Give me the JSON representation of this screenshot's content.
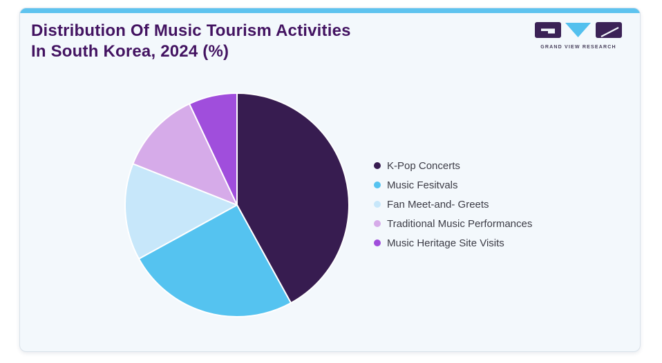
{
  "header": {
    "title_line1": "Distribution Of Music Tourism Activities",
    "title_line2": "In South Korea, 2024 (%)"
  },
  "logo": {
    "text": "GRAND VIEW RESEARCH"
  },
  "theme": {
    "page_bg": "#ffffff",
    "card_bg": "#f3f8fc",
    "card_border": "#d9e2ea",
    "top_bar": "#5ec3ef",
    "title_color": "#431361",
    "legend_text": "#3b3b45",
    "logo_dark": "#3b2256",
    "logo_accent": "#53c0ee",
    "logo_text_color": "#49415c",
    "slice_separator": "#ffffff"
  },
  "chart_data": {
    "type": "pie",
    "title": "Distribution Of Music Tourism Activities In South Korea, 2024 (%)",
    "unit": "%",
    "start_angle_deg": 0,
    "direction": "clockwise",
    "legend_position": "right",
    "slices": [
      {
        "label": "K-Pop Concerts",
        "value": 42,
        "color": "#371c50"
      },
      {
        "label": "Music Fesitvals",
        "value": 25,
        "color": "#55c3f0"
      },
      {
        "label": "Fan Meet-and- Greets",
        "value": 14,
        "color": "#c7e7fa"
      },
      {
        "label": "Traditional Music Performances",
        "value": 12,
        "color": "#d6abe9"
      },
      {
        "label": "Music Heritage Site Visits",
        "value": 7,
        "color": "#a04edc"
      }
    ]
  }
}
